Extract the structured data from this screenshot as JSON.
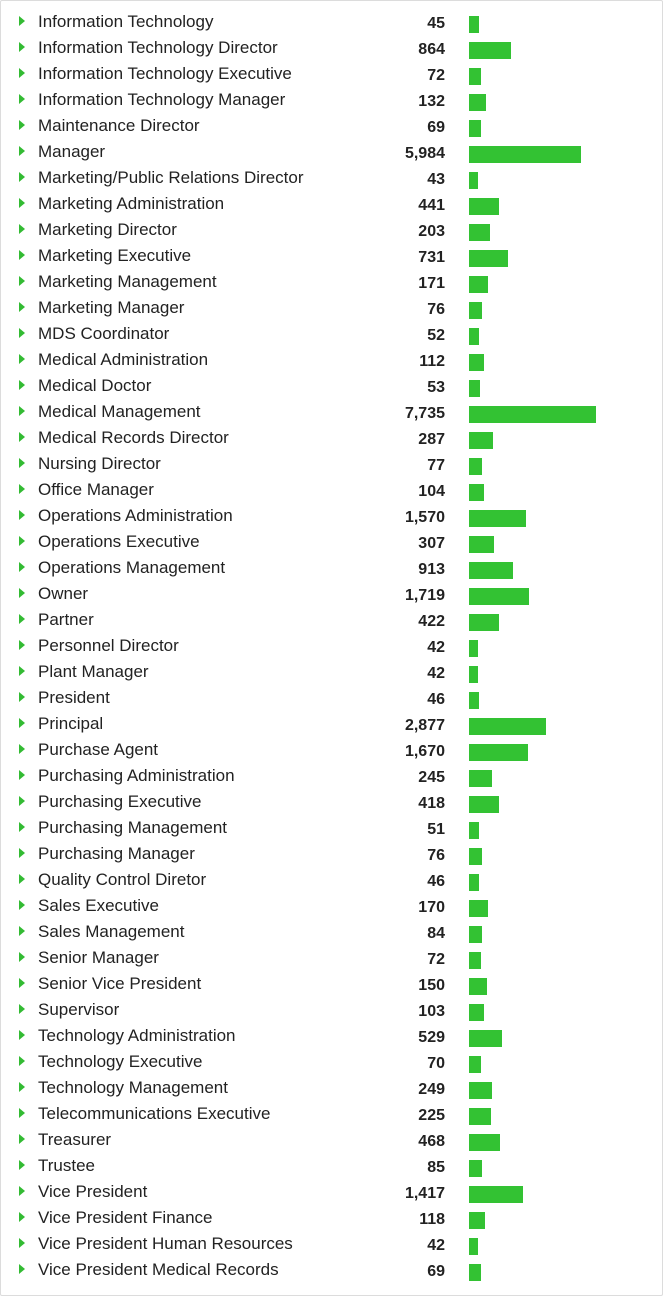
{
  "colors": {
    "bar": "#33c233",
    "caret": "#33bb33",
    "text": "#222222"
  },
  "icon": "caret-right-icon",
  "chart_data": {
    "type": "bar",
    "orientation": "horizontal",
    "categories": [
      "Information Technology",
      "Information Technology Director",
      "Information Technology Executive",
      "Information Technology Manager",
      "Maintenance Director",
      "Manager",
      "Marketing/Public Relations Director",
      "Marketing Administration",
      "Marketing Director",
      "Marketing Executive",
      "Marketing Management",
      "Marketing Manager",
      "MDS Coordinator",
      "Medical Administration",
      "Medical Doctor",
      "Medical Management",
      "Medical Records Director",
      "Nursing Director",
      "Office Manager",
      "Operations Administration",
      "Operations Executive",
      "Operations Management",
      "Owner",
      "Partner",
      "Personnel Director",
      "Plant Manager",
      "President",
      "Principal",
      "Purchase Agent",
      "Purchasing Administration",
      "Purchasing Executive",
      "Purchasing Management",
      "Purchasing Manager",
      "Quality Control Diretor",
      "Sales Executive",
      "Sales Management",
      "Senior Manager",
      "Senior Vice President",
      "Supervisor",
      "Technology Administration",
      "Technology Executive",
      "Technology Management",
      "Telecommunications Executive",
      "Treasurer",
      "Trustee",
      "Vice President",
      "Vice President Finance",
      "Vice President Human Resources",
      "Vice President Medical Records"
    ],
    "values": [
      45,
      864,
      72,
      132,
      69,
      5984,
      43,
      441,
      203,
      731,
      171,
      76,
      52,
      112,
      53,
      7735,
      287,
      77,
      104,
      1570,
      307,
      913,
      1719,
      422,
      42,
      42,
      46,
      2877,
      1670,
      245,
      418,
      51,
      76,
      46,
      170,
      84,
      72,
      150,
      103,
      529,
      70,
      249,
      225,
      468,
      85,
      1417,
      118,
      42,
      69
    ],
    "value_labels": [
      "45",
      "864",
      "72",
      "132",
      "69",
      "5,984",
      "43",
      "441",
      "203",
      "731",
      "171",
      "76",
      "52",
      "112",
      "53",
      "7,735",
      "287",
      "77",
      "104",
      "1,570",
      "307",
      "913",
      "1,719",
      "422",
      "42",
      "42",
      "46",
      "2,877",
      "1,670",
      "245",
      "418",
      "51",
      "76",
      "46",
      "170",
      "84",
      "72",
      "150",
      "103",
      "529",
      "70",
      "249",
      "225",
      "468",
      "85",
      "1,417",
      "118",
      "42",
      "69"
    ]
  }
}
